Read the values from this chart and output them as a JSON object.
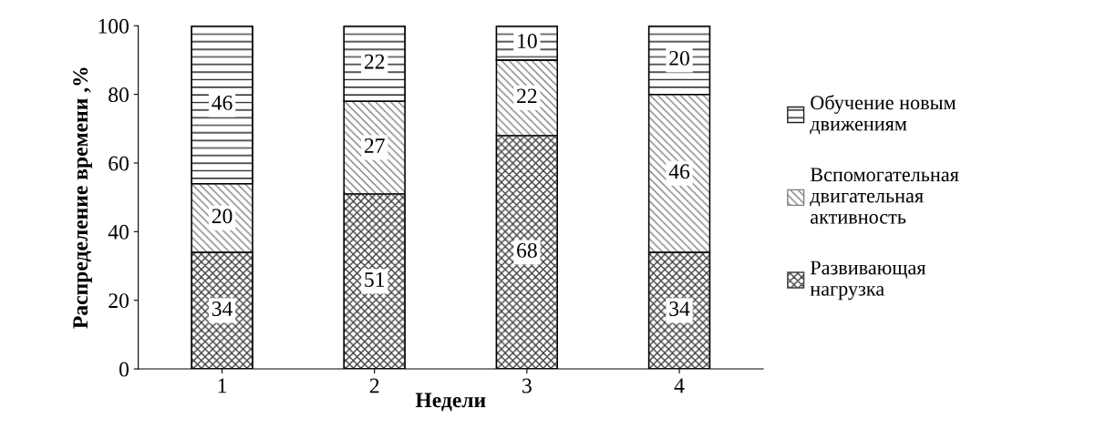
{
  "chart_data": {
    "type": "bar",
    "stacked": true,
    "xlabel": "Недели",
    "ylabel": "Распределение времени ,%",
    "categories": [
      "1",
      "2",
      "3",
      "4"
    ],
    "series": [
      {
        "name": "Развивающая нагрузка",
        "color": "#404040",
        "values": [
          34,
          51,
          68,
          34
        ]
      },
      {
        "name": "Вспомогательная двигательная активность",
        "color": "#808080",
        "values": [
          20,
          27,
          22,
          46
        ]
      },
      {
        "name": "Обучение новым движениям",
        "color": "#202020",
        "values": [
          46,
          22,
          10,
          20
        ]
      }
    ],
    "ylim": [
      0,
      100
    ],
    "yticks": [
      0,
      20,
      40,
      60,
      80,
      100
    ],
    "grid": false,
    "legend": "right",
    "data_labels": true
  }
}
